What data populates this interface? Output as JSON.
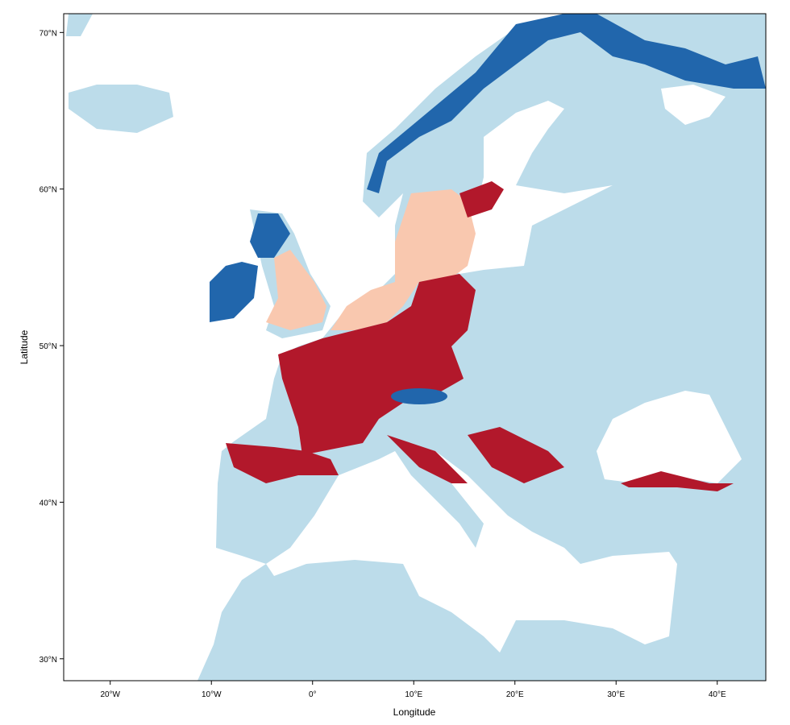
{
  "map": {
    "xlabel": "Longitude",
    "ylabel": "Latitude",
    "xlim": [
      -24.6,
      44.8
    ],
    "ylim": [
      28.6,
      71.2
    ],
    "xticks": [
      {
        "value": -20,
        "label": "20°W"
      },
      {
        "value": -10,
        "label": "10°W"
      },
      {
        "value": 0,
        "label": "0°"
      },
      {
        "value": 10,
        "label": "10°E"
      },
      {
        "value": 20,
        "label": "20°E"
      },
      {
        "value": 30,
        "label": "30°E"
      },
      {
        "value": 40,
        "label": "40°E"
      }
    ],
    "yticks": [
      {
        "value": 30,
        "label": "30°N"
      },
      {
        "value": 40,
        "label": "40°N"
      },
      {
        "value": 50,
        "label": "50°N"
      },
      {
        "value": 60,
        "label": "60°N"
      },
      {
        "value": 70,
        "label": "70°N"
      }
    ]
  }
}
